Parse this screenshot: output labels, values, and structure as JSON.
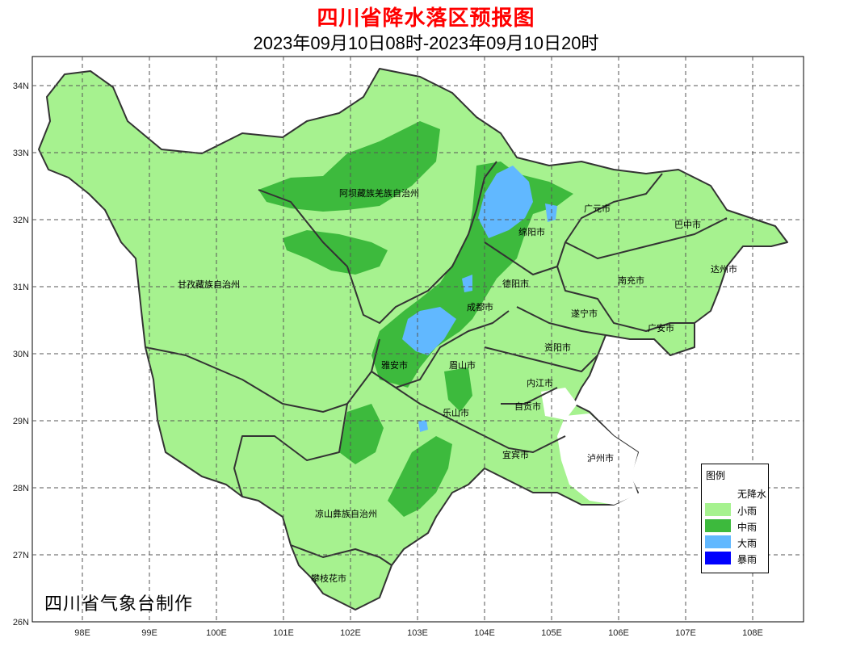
{
  "title": "四川省降水落区预报图",
  "subtitle": "2023年09月10日08时-2023年09月10日20时",
  "credit": "四川省气象台制作",
  "axes": {
    "x_ticks": [
      "98E",
      "99E",
      "100E",
      "101E",
      "102E",
      "103E",
      "104E",
      "105E",
      "106E",
      "107E",
      "108E"
    ],
    "y_ticks": [
      "34N",
      "33N",
      "32N",
      "31N",
      "30N",
      "29N",
      "28N",
      "27N",
      "26N"
    ]
  },
  "regions": [
    {
      "id": "aba",
      "label": "阿坝藏族羌族自治州"
    },
    {
      "id": "ganzi",
      "label": "甘孜藏族自治州"
    },
    {
      "id": "liangshan",
      "label": "凉山彝族自治州"
    },
    {
      "id": "panzhihua",
      "label": "攀枝花市"
    },
    {
      "id": "guangyuan",
      "label": "广元市"
    },
    {
      "id": "bazhong",
      "label": "巴中市"
    },
    {
      "id": "mianyang",
      "label": "绵阳市"
    },
    {
      "id": "dazhou",
      "label": "达州市"
    },
    {
      "id": "nanchong",
      "label": "南充市"
    },
    {
      "id": "deyang",
      "label": "德阳市"
    },
    {
      "id": "chengdu",
      "label": "成都市"
    },
    {
      "id": "suining",
      "label": "遂宁市"
    },
    {
      "id": "guangan",
      "label": "广安市"
    },
    {
      "id": "ziyang",
      "label": "资阳市"
    },
    {
      "id": "yaan",
      "label": "雅安市"
    },
    {
      "id": "meishan",
      "label": "眉山市"
    },
    {
      "id": "neijiang",
      "label": "内江市"
    },
    {
      "id": "zigong",
      "label": "自贡市"
    },
    {
      "id": "leshan",
      "label": "乐山市"
    },
    {
      "id": "yibin",
      "label": "宜宾市"
    },
    {
      "id": "luzhou",
      "label": "泸州市"
    }
  ],
  "legend": {
    "title": "图例",
    "items": [
      {
        "label": "无降水",
        "color": "#ffffff"
      },
      {
        "label": "小雨",
        "color": "#a6f28f"
      },
      {
        "label": "中雨",
        "color": "#3dba3d"
      },
      {
        "label": "大雨",
        "color": "#61b8ff"
      },
      {
        "label": "暴雨",
        "color": "#0000fe"
      }
    ]
  },
  "colors": {
    "light_rain": "#a6f28f",
    "moderate_rain": "#3dba3d",
    "heavy_rain": "#61b8ff",
    "no_rain": "#ffffff",
    "title": "#ff0000"
  }
}
